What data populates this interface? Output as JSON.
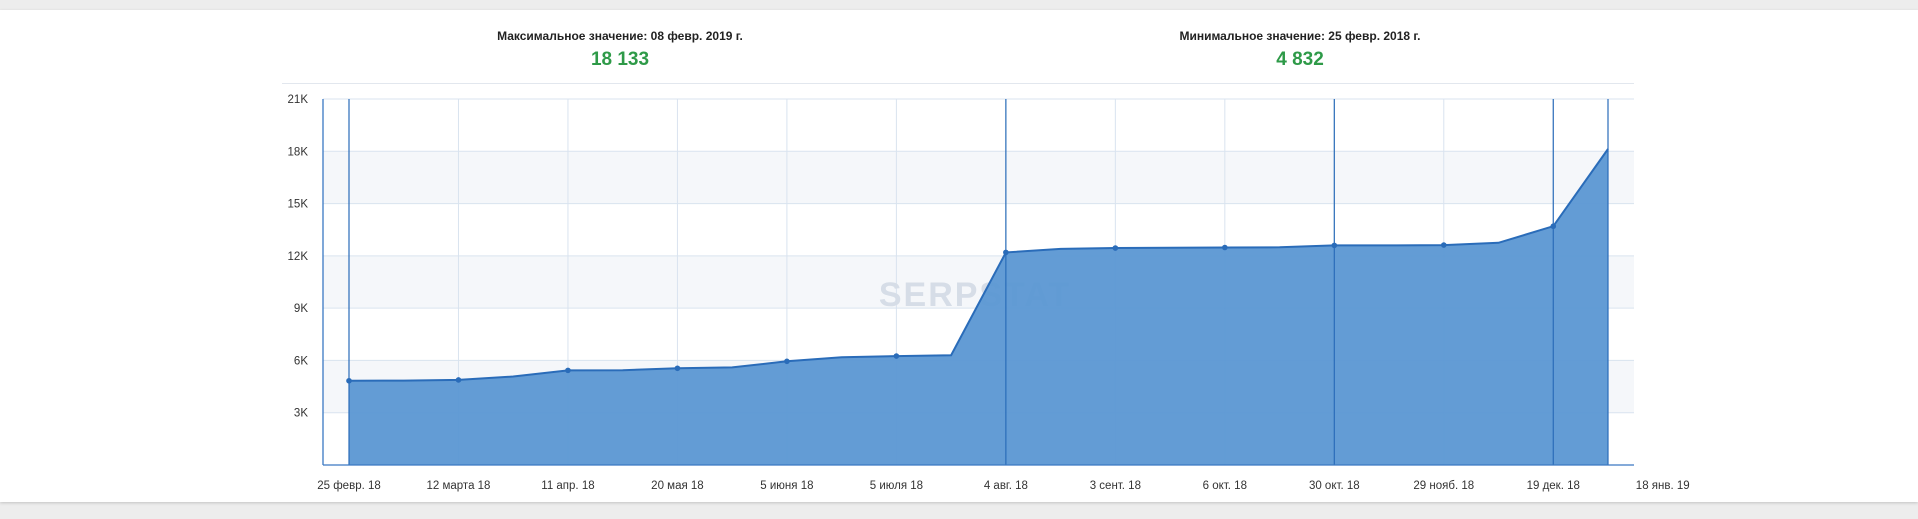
{
  "stats": {
    "max": {
      "label": "Максимальное значение: 08 февр. 2019 г.",
      "value": "18 133"
    },
    "min": {
      "label": "Минимальное значение: 25 февр. 2018 г.",
      "value": "4 832"
    }
  },
  "watermark": "SERPSTAT",
  "colors": {
    "area": "#5b97d3",
    "line": "#2a6cb9",
    "grid": "#d9e3ef",
    "band": "#f5f7fa",
    "value": "#2e9a48"
  },
  "chart_data": {
    "type": "area",
    "ylim": [
      0,
      21000
    ],
    "yticks": [
      3000,
      6000,
      9000,
      12000,
      15000,
      18000,
      21000
    ],
    "ytick_labels": [
      "3K",
      "6K",
      "9K",
      "12K",
      "15K",
      "18K",
      "21K"
    ],
    "x_labels": [
      "25 февр. 18",
      "12 марта 18",
      "11 апр. 18",
      "20 мая 18",
      "5 июня 18",
      "5 июля 18",
      "4 авг. 18",
      "3 сент. 18",
      "6 окт. 18",
      "30 окт. 18",
      "29 нояб. 18",
      "19 дек. 18",
      "18 янв. 19"
    ],
    "values": [
      4832,
      4840,
      4880,
      5080,
      5430,
      5440,
      5550,
      5600,
      5950,
      6180,
      6250,
      6300,
      12200,
      12400,
      12450,
      12460,
      12480,
      12490,
      12600,
      12600,
      12620,
      12750,
      13700,
      18133
    ],
    "markers": [
      0,
      2,
      4,
      6,
      8,
      10,
      12,
      14,
      16,
      18,
      20,
      22
    ],
    "event_lines": [
      0,
      12,
      18,
      22,
      23
    ],
    "grid": true,
    "legend": "none"
  }
}
